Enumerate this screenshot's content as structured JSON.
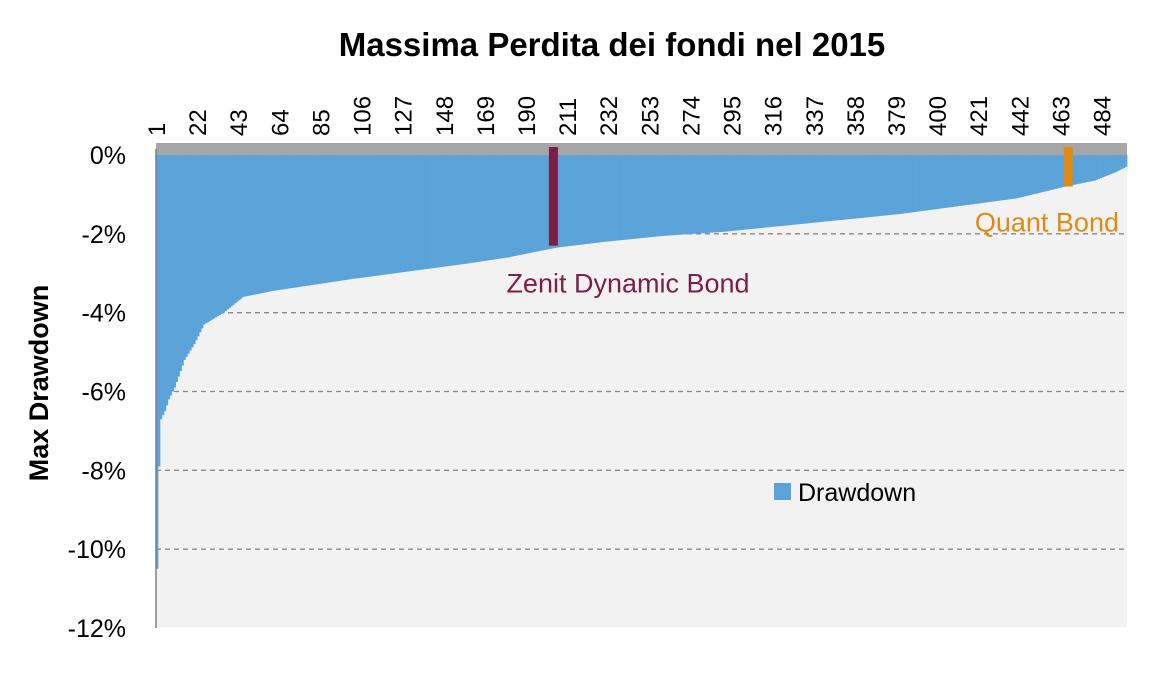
{
  "chart_data": {
    "type": "bar",
    "title": "Massima Perdita dei fondi nel 2015",
    "ylabel": "Max Drawdown",
    "xlabel": "",
    "ylim": [
      -12,
      0
    ],
    "yticks": [
      0,
      -2,
      -4,
      -6,
      -8,
      -10,
      -12
    ],
    "ytick_labels": [
      "0%",
      "-2%",
      "-4%",
      "-6%",
      "-8%",
      "-10%",
      "-12%"
    ],
    "x_count": 496,
    "x_tick_labels": [
      "1",
      "22",
      "43",
      "64",
      "85",
      "106",
      "127",
      "148",
      "169",
      "190",
      "211",
      "232",
      "253",
      "274",
      "295",
      "316",
      "337",
      "358",
      "379",
      "400",
      "421",
      "442",
      "463",
      "484"
    ],
    "grid": "horizontal dashed",
    "legend": {
      "position": "center-right",
      "entries": [
        "Drawdown"
      ]
    },
    "series": [
      {
        "name": "Drawdown",
        "color": "#5ba3d9",
        "note": "values sorted from worst to best; estimated from gridlines",
        "control_points": [
          [
            1,
            -10.5
          ],
          [
            2,
            -7.9
          ],
          [
            3,
            -6.7
          ],
          [
            5,
            -6.5
          ],
          [
            7,
            -6.2
          ],
          [
            10,
            -5.9
          ],
          [
            15,
            -5.2
          ],
          [
            20,
            -4.8
          ],
          [
            25,
            -4.3
          ],
          [
            35,
            -4.0
          ],
          [
            45,
            -3.6
          ],
          [
            60,
            -3.45
          ],
          [
            80,
            -3.3
          ],
          [
            100,
            -3.15
          ],
          [
            130,
            -2.95
          ],
          [
            160,
            -2.75
          ],
          [
            180,
            -2.6
          ],
          [
            190,
            -2.5
          ],
          [
            205,
            -2.35
          ],
          [
            230,
            -2.2
          ],
          [
            260,
            -2.05
          ],
          [
            290,
            -1.95
          ],
          [
            320,
            -1.8
          ],
          [
            350,
            -1.65
          ],
          [
            380,
            -1.5
          ],
          [
            410,
            -1.3
          ],
          [
            440,
            -1.1
          ],
          [
            465,
            -0.8
          ],
          [
            480,
            -0.65
          ],
          [
            490,
            -0.45
          ],
          [
            496,
            -0.3
          ]
        ]
      }
    ],
    "annotations": [
      {
        "label": "Zenit Dynamic Bond",
        "x": 204,
        "value": -2.3,
        "color": "#7b1f45"
      },
      {
        "label": "Quant Bond",
        "x": 467,
        "value": -0.8,
        "color": "#e08a14"
      }
    ],
    "colors": {
      "bars": "#5ba3d9",
      "axis_band": "#a6a6a6",
      "plot_bg": "#f2f2f2",
      "grid": "#888888"
    }
  }
}
